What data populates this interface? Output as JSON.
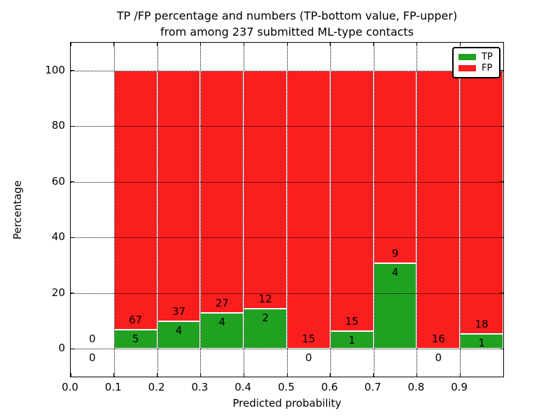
{
  "title": {
    "line1": "TP /FP percentage and numbers (TP-bottom value, FP-upper)",
    "line2": "from among 237 submitted ML-type contacts"
  },
  "axes": {
    "xlabel": "Predicted probability",
    "ylabel": "Percentage",
    "x_tick_values": [
      0.0,
      0.1,
      0.2,
      0.3,
      0.4,
      0.5,
      0.6,
      0.7,
      0.8,
      0.9
    ],
    "x_tick_labels": [
      "0.0",
      "0.1",
      "0.2",
      "0.3",
      "0.4",
      "0.5",
      "0.6",
      "0.7",
      "0.8",
      "0.9"
    ],
    "y_tick_values": [
      0,
      20,
      40,
      60,
      80,
      100
    ],
    "y_tick_labels": [
      "0",
      "20",
      "40",
      "60",
      "80",
      "100"
    ],
    "xlim": [
      0.0,
      1.0
    ],
    "ylim": [
      -10,
      110
    ],
    "grid_style": "dotted"
  },
  "legend": {
    "position": "upper-right",
    "entries": [
      {
        "label": "TP",
        "color": "#21a121"
      },
      {
        "label": "FP",
        "color": "#fb1e1e"
      }
    ]
  },
  "chart_data": {
    "type": "bar",
    "stacked": true,
    "normalized_to_percent": true,
    "title": "TP /FP percentage and numbers (TP-bottom value, FP-upper) from among 237 submitted ML-type contacts",
    "xlabel": "Predicted probability",
    "ylabel": "Percentage",
    "total_contacts": 237,
    "bin_width": 0.1,
    "bin_starts": [
      0.0,
      0.1,
      0.2,
      0.3,
      0.4,
      0.5,
      0.6,
      0.7,
      0.8,
      0.9
    ],
    "series": [
      {
        "name": "TP",
        "color": "#21a121",
        "counts": [
          0,
          5,
          4,
          4,
          2,
          0,
          1,
          4,
          0,
          1
        ]
      },
      {
        "name": "FP",
        "color": "#fb1e1e",
        "counts": [
          0,
          67,
          37,
          27,
          12,
          15,
          15,
          9,
          16,
          18
        ]
      }
    ],
    "tp_percent_of_bin": [
      0,
      6.9,
      9.8,
      12.9,
      14.3,
      0,
      6.3,
      30.8,
      0,
      5.3
    ],
    "bar_edge_color": "#ffffff",
    "ylim": [
      -10,
      110
    ]
  }
}
